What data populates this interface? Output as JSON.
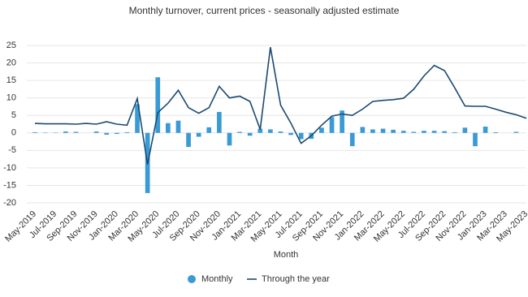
{
  "chart_data": {
    "type": "bar-line",
    "title": "Monthly turnover, current prices - seasonally adjusted estimate",
    "x_label": "Month",
    "categories": [
      "May-2019",
      null,
      "Jul-2019",
      null,
      "Sep-2019",
      null,
      "Nov-2019",
      null,
      "Jan-2020",
      null,
      "Mar-2020",
      null,
      "May-2020",
      null,
      "Jul-2020",
      null,
      "Sep-2020",
      null,
      "Nov-2020",
      null,
      "Jan-2021",
      null,
      "Mar-2021",
      null,
      "May-2021",
      null,
      "Jul-2021",
      null,
      "Sep-2021",
      null,
      "Nov-2021",
      null,
      "Jan-2022",
      null,
      "Mar-2022",
      null,
      "May-2022",
      null,
      "Jul-2022",
      null,
      "Sep-2022",
      null,
      "Nov-2022",
      null,
      "Jan-2023",
      null,
      "Mar-2023",
      null,
      "May-2023"
    ],
    "series": [
      {
        "name": "Monthly",
        "type": "bar",
        "color": "#3a9ad6",
        "values": [
          0.2,
          0.1,
          0.1,
          0.4,
          0.3,
          0.0,
          0.4,
          -0.5,
          -0.3,
          0.2,
          8.2,
          -17.2,
          15.9,
          2.8,
          3.5,
          -4.0,
          -1.1,
          1.6,
          6.0,
          -3.6,
          0.3,
          -0.8,
          1.2,
          1.0,
          0.4,
          -0.6,
          -1.8,
          -1.7,
          1.5,
          4.5,
          6.4,
          -3.8,
          1.7,
          1.0,
          1.2,
          0.9,
          0.6,
          0.3,
          0.6,
          0.6,
          0.5,
          0.2,
          1.5,
          -3.8,
          1.8,
          0.2,
          0.0,
          0.3,
          0.0
        ]
      },
      {
        "name": "Through the year",
        "type": "line",
        "color": "#1b4a72",
        "values": [
          2.7,
          2.6,
          2.6,
          2.6,
          2.5,
          2.7,
          2.5,
          3.2,
          2.5,
          2.2,
          9.8,
          -9.0,
          5.8,
          8.5,
          12.2,
          7.2,
          5.6,
          7.2,
          13.3,
          10.0,
          10.5,
          9.0,
          1.0,
          24.5,
          7.9,
          2.8,
          -3.0,
          -0.8,
          2.2,
          4.8,
          5.4,
          5.0,
          6.8,
          9.0,
          9.3,
          9.5,
          9.9,
          12.5,
          16.3,
          19.3,
          17.8,
          12.9,
          7.7,
          7.6,
          7.6,
          6.8,
          5.9,
          5.2,
          4.2
        ]
      }
    ],
    "ylim": [
      -20,
      25
    ],
    "yticks": [
      -20,
      -15,
      -10,
      -5,
      0,
      5,
      10,
      15,
      20,
      25
    ],
    "grid": true
  }
}
